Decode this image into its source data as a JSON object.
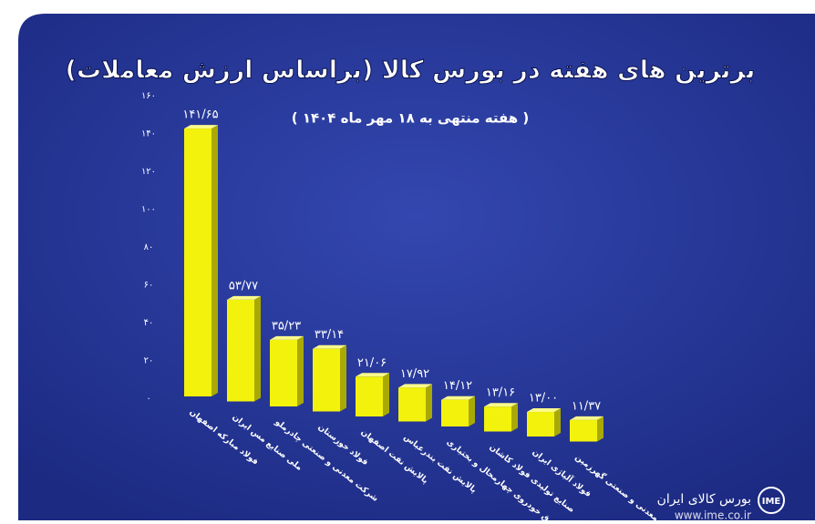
{
  "chart_data": {
    "type": "bar",
    "title": "برترین های هفته در بورس کالا (براساس ارزش معاملات)",
    "subtitle": "( هفته منتهی به ۱۸ مهر ماه ۱۴۰۴ )",
    "categories": [
      "فولاد مبارکه اصفهان",
      "ملی صنایع مس ایران",
      "شرکت معدنی و صنعتی چادرملو",
      "فولاد خوزستان",
      "پالایش نفت اصفهان",
      "پالایش نفت بندرعباس",
      "ورق خودروی چهارمحال و بختیاری",
      "صنایع تولیدی فولاد کاشان",
      "فولاد آلیاژی ایران",
      "معدنی و صنعتی گهرزمین"
    ],
    "values": [
      141.65,
      53.77,
      35.23,
      33.14,
      21.06,
      17.92,
      14.12,
      13.16,
      13.0,
      11.37
    ],
    "value_labels": [
      "۱۴۱/۶۵",
      "۵۳/۷۷",
      "۳۵/۲۳",
      "۳۳/۱۴",
      "۲۱/۰۶",
      "۱۷/۹۲",
      "۱۴/۱۲",
      "۱۳/۱۶",
      "۱۳/۰۰",
      "۱۱/۳۷"
    ],
    "color": "#f2f20c",
    "ylim": [
      0,
      160
    ],
    "yticks": [
      {
        "value": 0,
        "label": "۰"
      },
      {
        "value": 20,
        "label": "۲۰"
      },
      {
        "value": 40,
        "label": "۴۰"
      },
      {
        "value": 60,
        "label": "۶۰"
      },
      {
        "value": 80,
        "label": "۸۰"
      },
      {
        "value": 100,
        "label": "۱۰۰"
      },
      {
        "value": 120,
        "label": "۱۲۰"
      },
      {
        "value": 140,
        "label": "۱۴۰"
      },
      {
        "value": 160,
        "label": "۱۶۰"
      }
    ],
    "grid": false
  },
  "footer": {
    "name": "بورس کالای ایران",
    "url": "www.ime.co.ir",
    "logo": "IME"
  }
}
